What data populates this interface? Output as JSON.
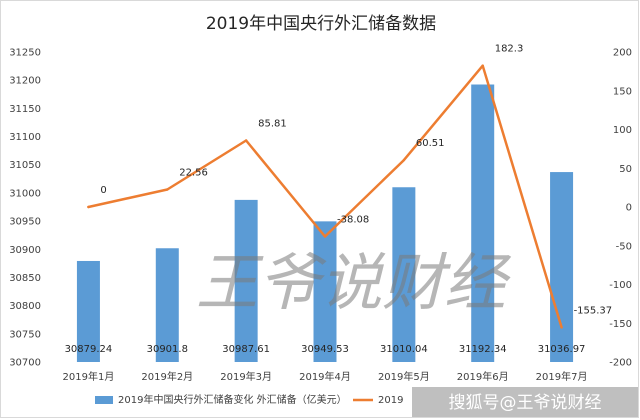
{
  "chart_data": {
    "type": "bar",
    "title": "2019年中国央行外汇储备数据",
    "categories": [
      "2019年1月",
      "2019年2月",
      "2019年3月",
      "2019年4月",
      "2019年5月",
      "2019年6月",
      "2019年7月"
    ],
    "series": [
      {
        "name": "2019年中国央行外汇储备变化 外汇储备（亿美元）",
        "type": "bar",
        "axis": "left",
        "color": "#5b9bd5",
        "values": [
          30879.24,
          30901.8,
          30987.61,
          30949.53,
          31010.04,
          31192.34,
          31036.97
        ],
        "labels": [
          "30879.24",
          "30901.8",
          "30987.61",
          "30949.53",
          "31010.04",
          "31192.34",
          "31036.97"
        ]
      },
      {
        "name": "2019",
        "type": "line",
        "axis": "right",
        "color": "#ed7d31",
        "values": [
          0,
          22.56,
          85.81,
          -38.08,
          60.51,
          182.3,
          -155.37
        ],
        "labels": [
          "0",
          "22.56",
          "85.81",
          "-38.08",
          "60.51",
          "182.3",
          "-155.37"
        ]
      }
    ],
    "y_left": {
      "min": 30700,
      "max": 31250,
      "step": 50
    },
    "y_right": {
      "min": -200,
      "max": 200,
      "step": 50
    },
    "grid": false,
    "legend_position": "bottom"
  },
  "watermark": {
    "text": "王爷说财经",
    "color": "#7a7a7a"
  },
  "footer_watermark": {
    "text": "搜狐号@王爷说财经"
  }
}
